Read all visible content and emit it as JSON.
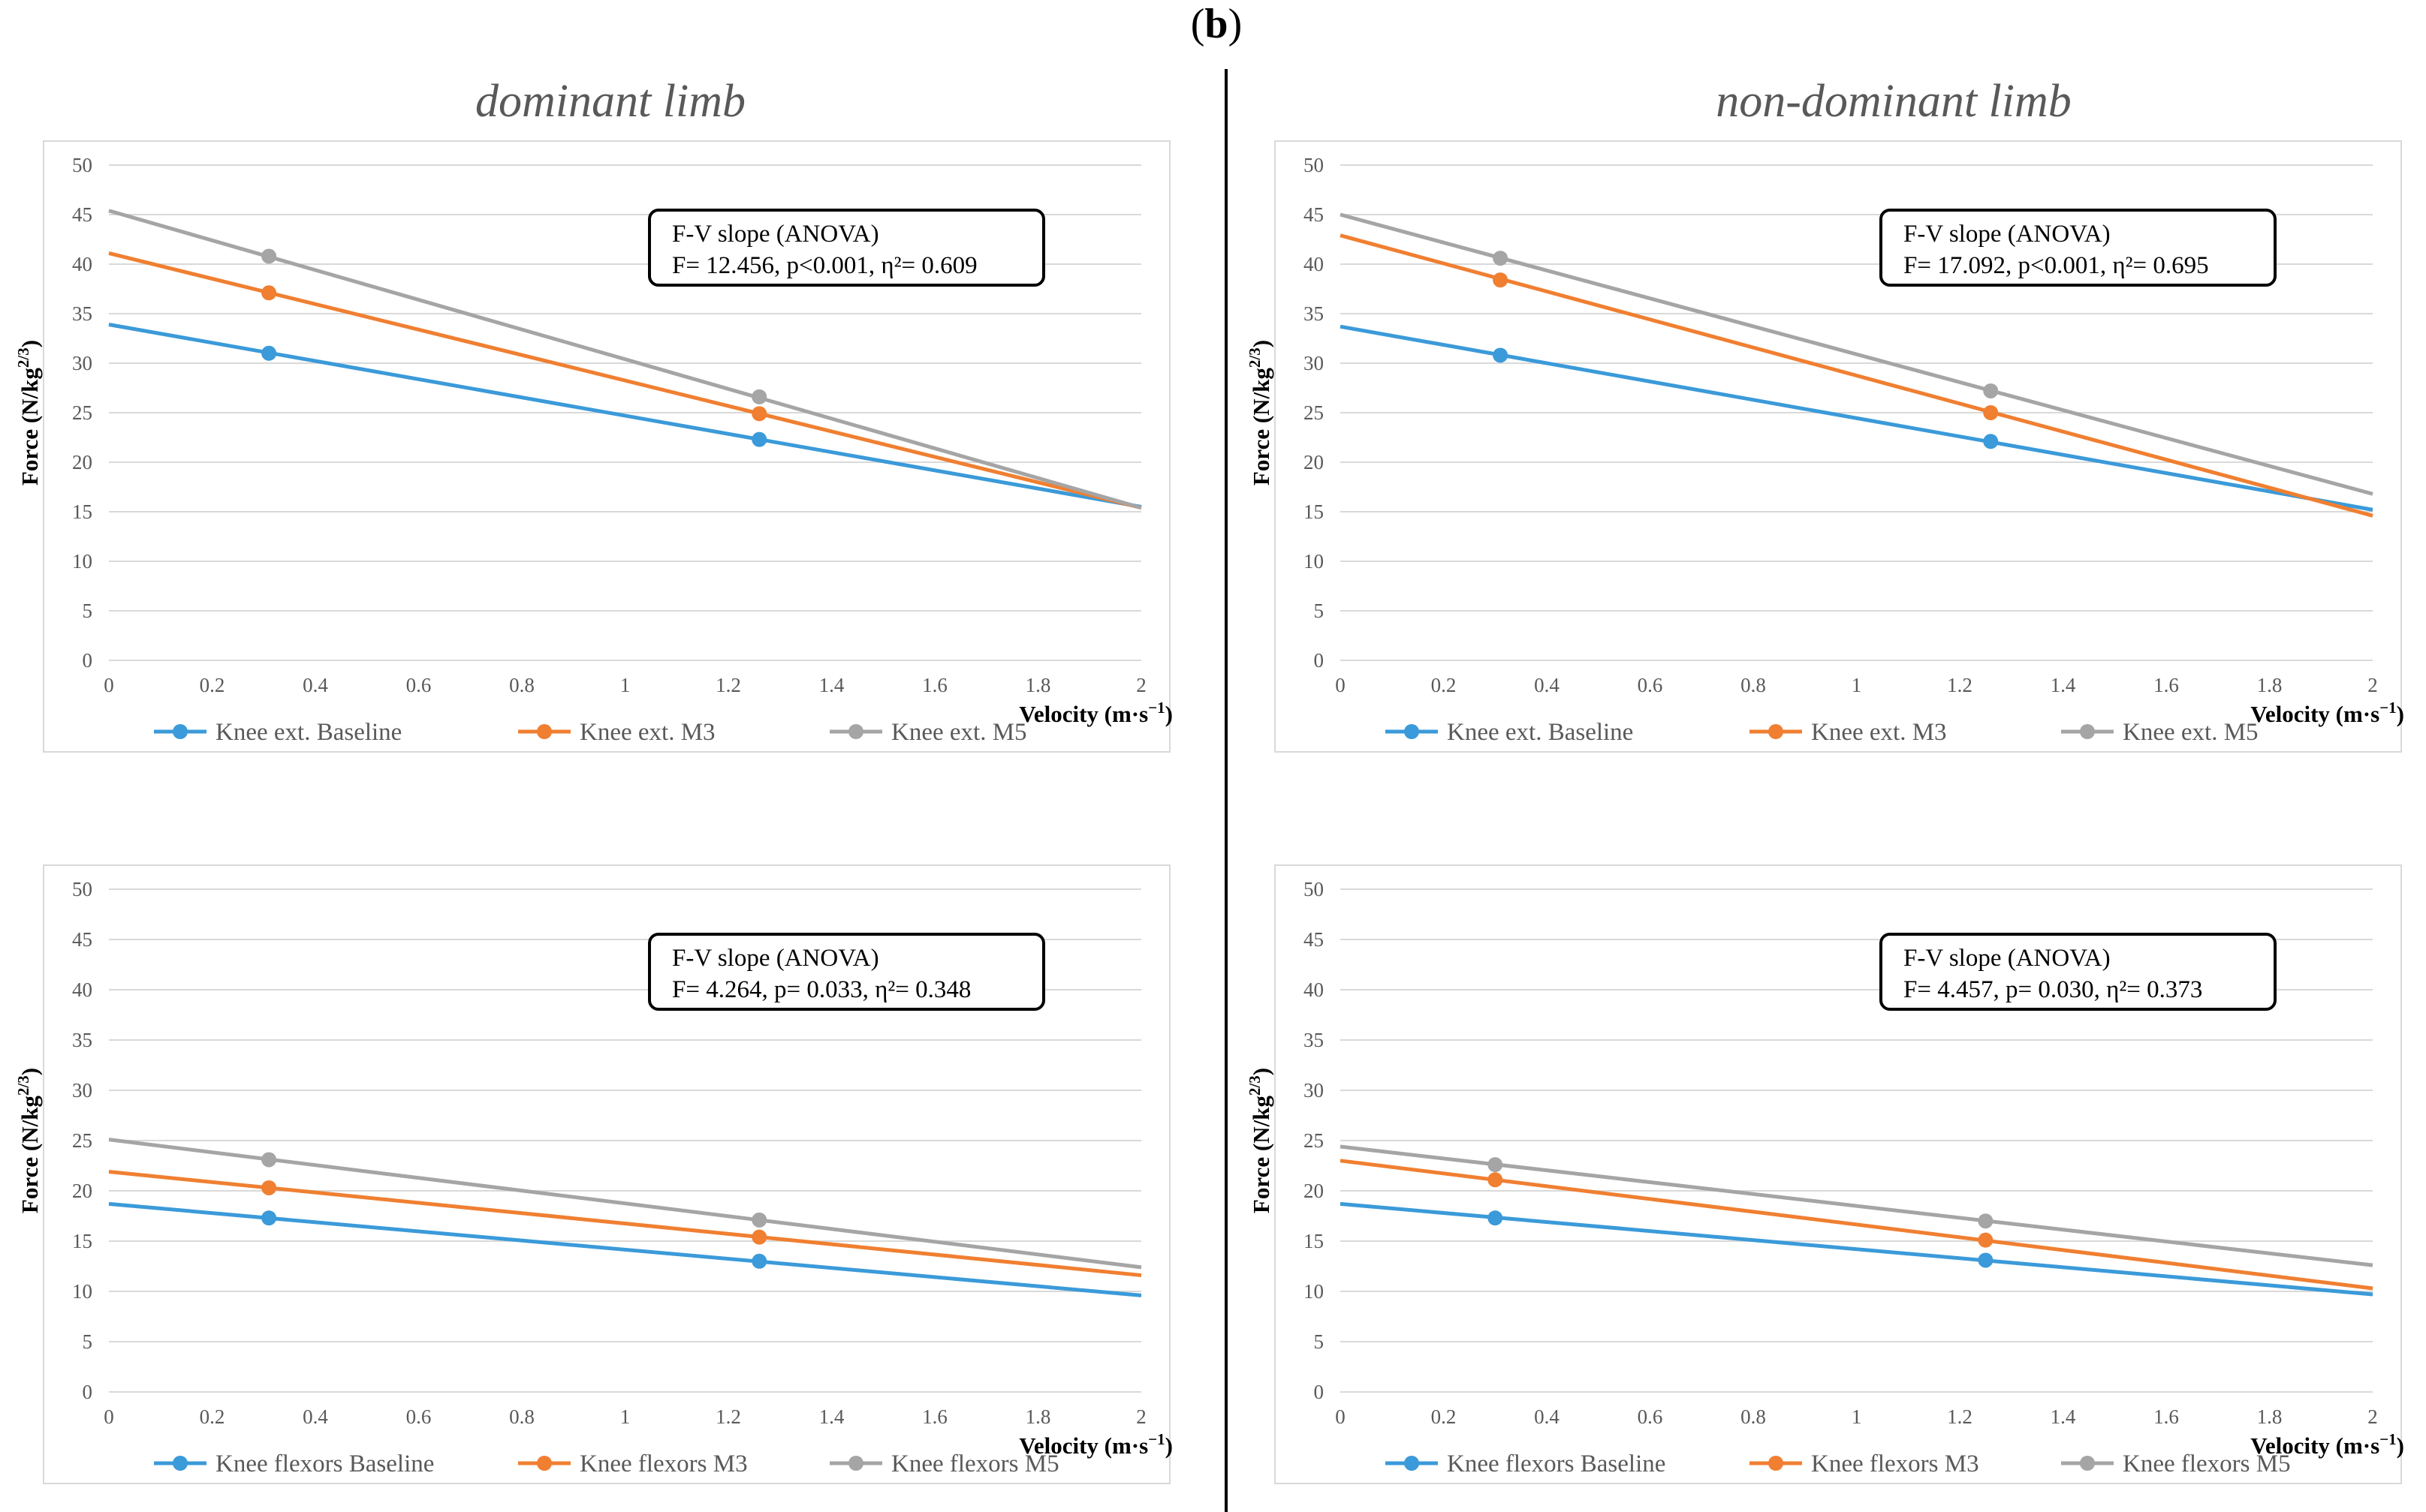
{
  "figure_label": {
    "prefix": "(",
    "letter": "b",
    "suffix": ")"
  },
  "column_titles": [
    "dominant limb",
    "non-dominant limb"
  ],
  "colors": {
    "baseline": "#3b9ad9",
    "m3": "#f07f31",
    "m5": "#a5a5a5",
    "grid": "#d9d9d9",
    "axis_text": "#595959"
  },
  "chart_data": [
    {
      "type": "line",
      "title": "dominant limb",
      "xlabel": "Velocity (m·s",
      "xlabel_sup": "−1",
      "xlabel_end": ")",
      "ylabel": "Force (N/kg",
      "ylabel_sup": "2/3",
      "ylabel_end": ")",
      "xlim": [
        0,
        2
      ],
      "ylim": [
        0,
        50
      ],
      "xticks": [
        "0",
        "0.2",
        "0.4",
        "0.6",
        "0.8",
        "1",
        "1.2",
        "1.4",
        "1.6",
        "1.8",
        "2"
      ],
      "yticks": [
        "0",
        "5",
        "10",
        "15",
        "20",
        "25",
        "30",
        "35",
        "40",
        "45",
        "50"
      ],
      "series": [
        {
          "name": "Knee ext. Baseline",
          "key": "baseline",
          "line": [
            [
              0,
              33.9
            ],
            [
              2,
              15.5
            ]
          ],
          "points": [
            [
              0.31,
              31.0
            ],
            [
              1.26,
              22.3
            ]
          ]
        },
        {
          "name": "Knee ext. M3",
          "key": "m3",
          "line": [
            [
              0,
              41.1
            ],
            [
              2,
              15.4
            ]
          ],
          "points": [
            [
              0.31,
              37.1
            ],
            [
              1.26,
              24.9
            ]
          ]
        },
        {
          "name": "Knee ext. M5",
          "key": "m5",
          "line": [
            [
              0,
              45.4
            ],
            [
              2,
              15.4
            ]
          ],
          "points": [
            [
              0.31,
              40.8
            ],
            [
              1.26,
              26.6
            ]
          ]
        }
      ],
      "annotation": {
        "line1": "F-V slope (ANOVA)",
        "line2": "F= 12.456, p<0.001, η²= 0.609"
      }
    },
    {
      "type": "line",
      "title": "non-dominant limb",
      "xlabel": "Velocity (m·s",
      "xlabel_sup": "−1",
      "xlabel_end": ")",
      "ylabel": "Force (N/kg",
      "ylabel_sup": "2/3",
      "ylabel_end": ")",
      "xlim": [
        0,
        2
      ],
      "ylim": [
        0,
        50
      ],
      "xticks": [
        "0",
        "0.2",
        "0.4",
        "0.6",
        "0.8",
        "1",
        "1.2",
        "1.4",
        "1.6",
        "1.8",
        "2"
      ],
      "yticks": [
        "0",
        "5",
        "10",
        "15",
        "20",
        "25",
        "30",
        "35",
        "40",
        "45",
        "50"
      ],
      "series": [
        {
          "name": "Knee ext. Baseline",
          "key": "baseline",
          "line": [
            [
              0,
              33.7
            ],
            [
              2,
              15.2
            ]
          ],
          "points": [
            [
              0.31,
              30.8
            ],
            [
              1.26,
              22.1
            ]
          ]
        },
        {
          "name": "Knee ext. M3",
          "key": "m3",
          "line": [
            [
              0,
              42.9
            ],
            [
              2,
              14.6
            ]
          ],
          "points": [
            [
              0.31,
              38.4
            ],
            [
              1.26,
              25.0
            ]
          ]
        },
        {
          "name": "Knee ext. M5",
          "key": "m5",
          "line": [
            [
              0,
              45.0
            ],
            [
              2,
              16.8
            ]
          ],
          "points": [
            [
              0.31,
              40.6
            ],
            [
              1.26,
              27.2
            ]
          ]
        }
      ],
      "annotation": {
        "line1": "F-V slope (ANOVA)",
        "line2": "F= 17.092, p<0.001, η²= 0.695"
      }
    },
    {
      "type": "line",
      "title": "dominant limb",
      "xlabel": "Velocity (m·s",
      "xlabel_sup": "−1",
      "xlabel_end": ")",
      "ylabel": "Force (N/kg",
      "ylabel_sup": "2/3",
      "ylabel_end": ")",
      "xlim": [
        0,
        2
      ],
      "ylim": [
        0,
        50
      ],
      "xticks": [
        "0",
        "0.2",
        "0.4",
        "0.6",
        "0.8",
        "1",
        "1.2",
        "1.4",
        "1.6",
        "1.8",
        "2"
      ],
      "yticks": [
        "0",
        "5",
        "10",
        "15",
        "20",
        "25",
        "30",
        "35",
        "40",
        "45",
        "50"
      ],
      "series": [
        {
          "name": "Knee flexors Baseline",
          "key": "baseline",
          "line": [
            [
              0,
              18.7
            ],
            [
              2,
              9.6
            ]
          ],
          "points": [
            [
              0.31,
              17.3
            ],
            [
              1.26,
              13.0
            ]
          ]
        },
        {
          "name": "Knee flexors M3",
          "key": "m3",
          "line": [
            [
              0,
              21.9
            ],
            [
              2,
              11.6
            ]
          ],
          "points": [
            [
              0.31,
              20.3
            ],
            [
              1.26,
              15.4
            ]
          ]
        },
        {
          "name": "Knee flexors M5",
          "key": "m5",
          "line": [
            [
              0,
              25.1
            ],
            [
              2,
              12.4
            ]
          ],
          "points": [
            [
              0.31,
              23.1
            ],
            [
              1.26,
              17.1
            ]
          ]
        }
      ],
      "annotation": {
        "line1": "F-V slope (ANOVA)",
        "line2": "F= 4.264, p= 0.033, η²= 0.348"
      }
    },
    {
      "type": "line",
      "title": "non-dominant limb",
      "xlabel": "Velocity (m·s",
      "xlabel_sup": "−1",
      "xlabel_end": ")",
      "ylabel": "Force (N/kg",
      "ylabel_sup": "2/3",
      "ylabel_end": ")",
      "xlim": [
        0,
        2
      ],
      "ylim": [
        0,
        50
      ],
      "xticks": [
        "0",
        "0.2",
        "0.4",
        "0.6",
        "0.8",
        "1",
        "1.2",
        "1.4",
        "1.6",
        "1.8",
        "2"
      ],
      "yticks": [
        "0",
        "5",
        "10",
        "15",
        "20",
        "25",
        "30",
        "35",
        "40",
        "45",
        "50"
      ],
      "series": [
        {
          "name": "Knee flexors Baseline",
          "key": "baseline",
          "line": [
            [
              0,
              18.7
            ],
            [
              2,
              9.7
            ]
          ],
          "points": [
            [
              0.3,
              17.3
            ],
            [
              1.25,
              13.1
            ]
          ]
        },
        {
          "name": "Knee flexors M3",
          "key": "m3",
          "line": [
            [
              0,
              23.0
            ],
            [
              2,
              10.3
            ]
          ],
          "points": [
            [
              0.3,
              21.1
            ],
            [
              1.25,
              15.1
            ]
          ]
        },
        {
          "name": "Knee flexors M5",
          "key": "m5",
          "line": [
            [
              0,
              24.4
            ],
            [
              2,
              12.6
            ]
          ],
          "points": [
            [
              0.3,
              22.6
            ],
            [
              1.25,
              17.0
            ]
          ]
        }
      ],
      "annotation": {
        "line1": "F-V slope (ANOVA)",
        "line2": "F= 4.457, p= 0.030, η²= 0.373"
      }
    }
  ]
}
